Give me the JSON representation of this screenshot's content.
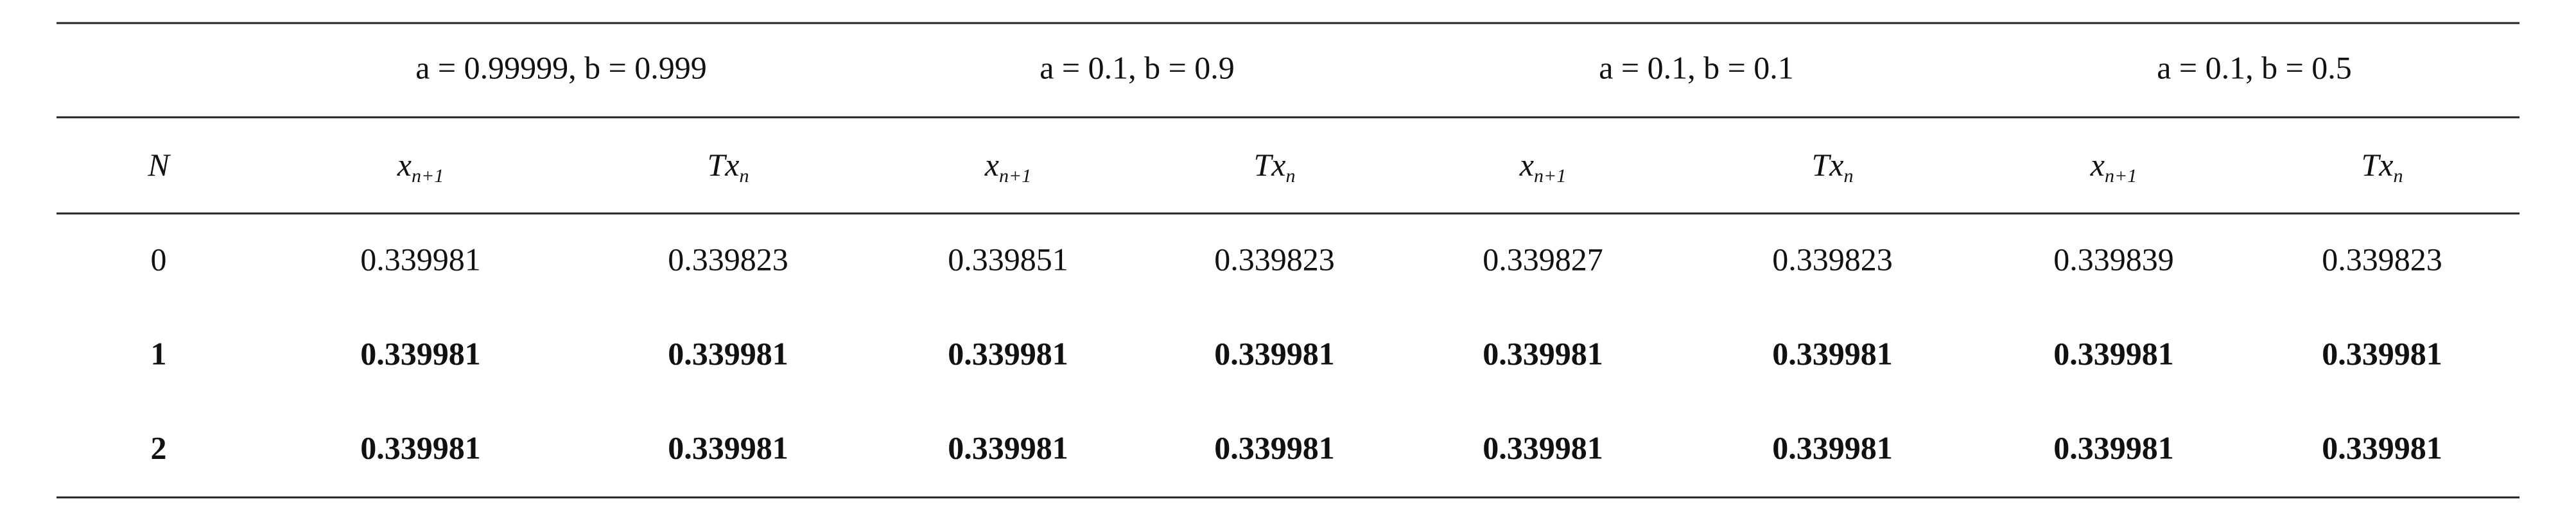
{
  "table": {
    "groups": [
      "a = 0.99999, b = 0.999",
      "a = 0.1, b = 0.9",
      "a = 0.1, b = 0.1",
      "a = 0.1, b = 0.5"
    ],
    "columns": [
      {
        "base": "N"
      },
      {
        "base": "x",
        "sub": "n+1"
      },
      {
        "base": "Tx",
        "sub": "n"
      },
      {
        "base": "x",
        "sub": "n+1"
      },
      {
        "base": "Tx",
        "sub": "n"
      },
      {
        "base": "x",
        "sub": "n+1"
      },
      {
        "base": "Tx",
        "sub": "n"
      },
      {
        "base": "x",
        "sub": "n+1"
      },
      {
        "base": "Tx",
        "sub": "n"
      }
    ],
    "rows": [
      {
        "bold": false,
        "cells": [
          "0",
          "0.339981",
          "0.339823",
          "0.339851",
          "0.339823",
          "0.339827",
          "0.339823",
          "0.339839",
          "0.339823"
        ]
      },
      {
        "bold": true,
        "cells": [
          "1",
          "0.339981",
          "0.339981",
          "0.339981",
          "0.339981",
          "0.339981",
          "0.339981",
          "0.339981",
          "0.339981"
        ]
      },
      {
        "bold": true,
        "cells": [
          "2",
          "0.339981",
          "0.339981",
          "0.339981",
          "0.339981",
          "0.339981",
          "0.339981",
          "0.339981",
          "0.339981"
        ]
      }
    ]
  }
}
